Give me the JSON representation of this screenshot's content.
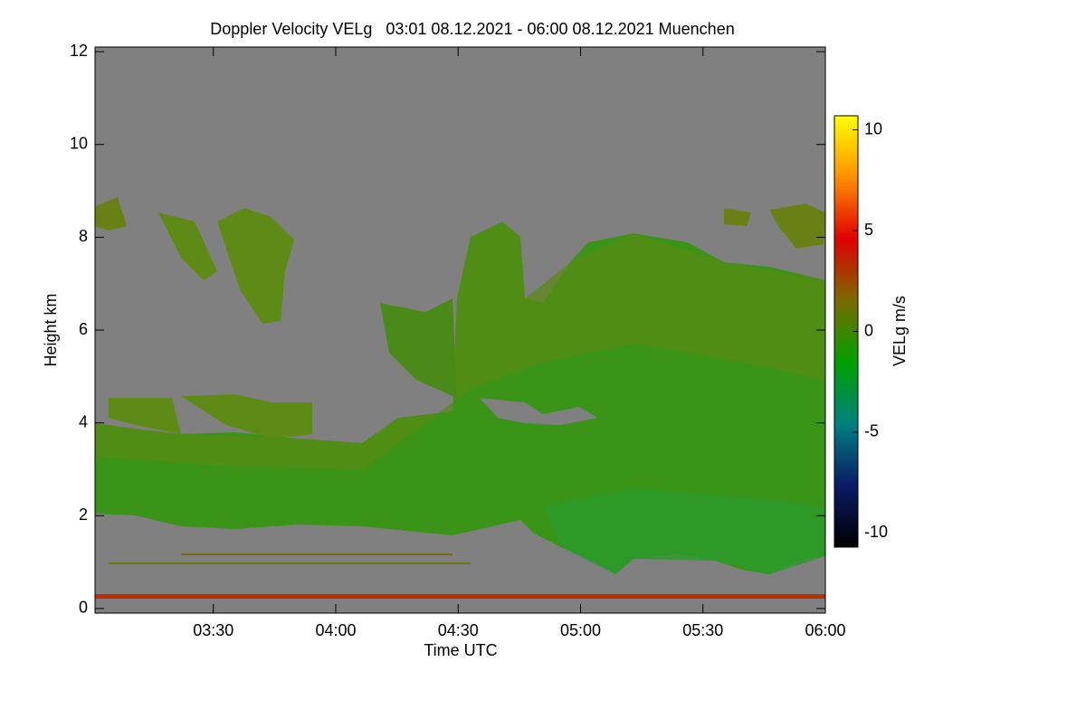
{
  "chart_data": {
    "type": "heatmap",
    "title": "Doppler Velocity VELg   03:01 08.12.2021 - 06:00 08.12.2021 Muenchen",
    "xlabel": "Time UTC",
    "ylabel": "Height km",
    "colorbar_label": "VELg m/s",
    "xlim": [
      181,
      360
    ],
    "xticks": [
      {
        "value": 210,
        "label": "03:30"
      },
      {
        "value": 240,
        "label": "04:00"
      },
      {
        "value": 270,
        "label": "04:30"
      },
      {
        "value": 300,
        "label": "05:00"
      },
      {
        "value": 330,
        "label": "05:30"
      },
      {
        "value": 360,
        "label": "06:00"
      }
    ],
    "ylim": [
      -0.1,
      12.1
    ],
    "yticks": [
      0,
      2,
      4,
      6,
      8,
      10,
      12
    ],
    "clim": [
      -10.7,
      10.7
    ],
    "cticks": [
      -10,
      -5,
      0,
      5,
      10
    ],
    "colormap": [
      "#000000",
      "#0a1a66",
      "#008080",
      "#00a000",
      "#7a6a00",
      "#e00000",
      "#ff9000",
      "#ffff00"
    ],
    "background": "#808080"
  }
}
